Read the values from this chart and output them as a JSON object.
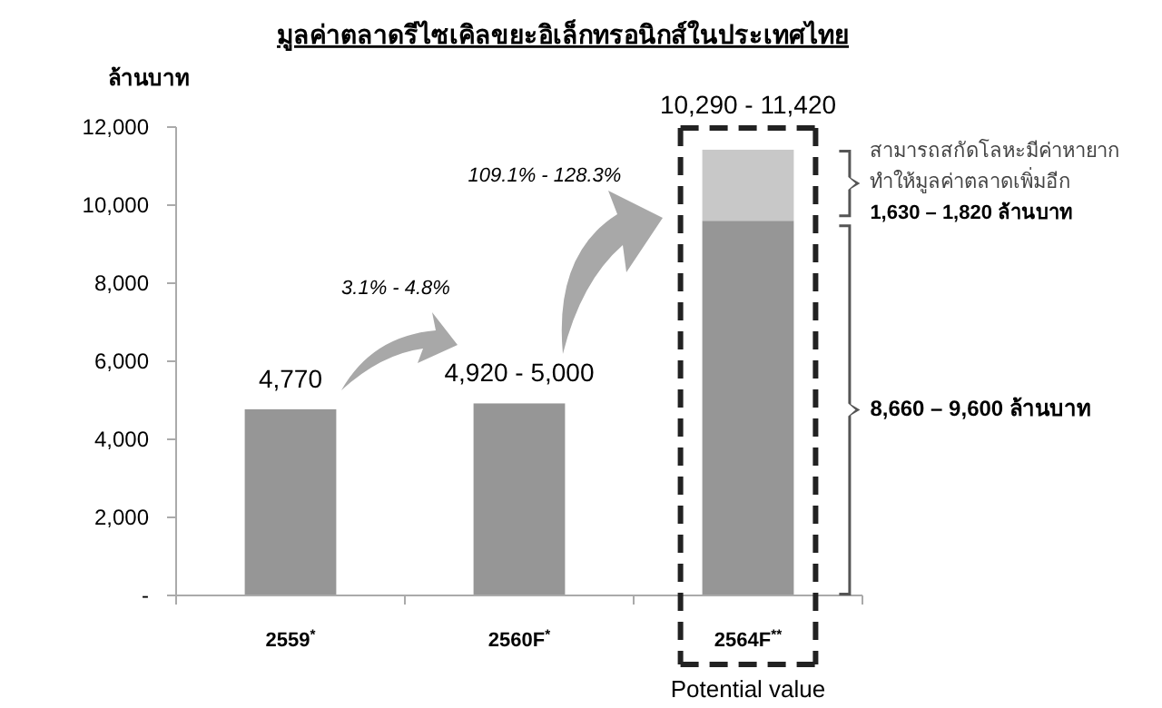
{
  "chart_data": {
    "type": "bar",
    "title": "มูลค่าตลาดรีไซเคิลขยะอิเล็กทรอนิกส์ในประเทศไทย",
    "ylabel": "ล้านบาท",
    "categories": [
      "2559$^{*}$",
      "2560F$^{*}$",
      "2564F$^{**}$"
    ],
    "stacked": true,
    "series": [
      {
        "color": "#969696",
        "values": [
          4770,
          4920,
          9600
        ]
      },
      {
        "color": "#c8c8c8",
        "values": [
          null,
          null,
          1820
        ]
      }
    ],
    "totals": [
      "4,770",
      "4,920 - 5,000",
      "10,290 - 11,420"
    ],
    "ylim": [
      0,
      12000
    ],
    "yticks": [
      {
        "value": 0,
        "label": "-"
      },
      {
        "value": 2000,
        "label": "2,000"
      },
      {
        "value": 4000,
        "label": "4,000"
      },
      {
        "value": 6000,
        "label": "6,000"
      },
      {
        "value": 8000,
        "label": "8,000"
      },
      {
        "value": 10000,
        "label": "10,000"
      },
      {
        "value": 12000,
        "label": "12,000"
      }
    ],
    "grid": false,
    "annotations": [
      "3.1% - 4.8%",
      "109.1% - 128.3%",
      "สามารถสกัดโลหะมีค่าหายาก\nทำให้มูลค่าตลาดเพิ่มอีก\n1,630 – 1,820 ล้านบาท",
      "8,660 – 9,600 ล้านบาท",
      "Potential value"
    ]
  }
}
